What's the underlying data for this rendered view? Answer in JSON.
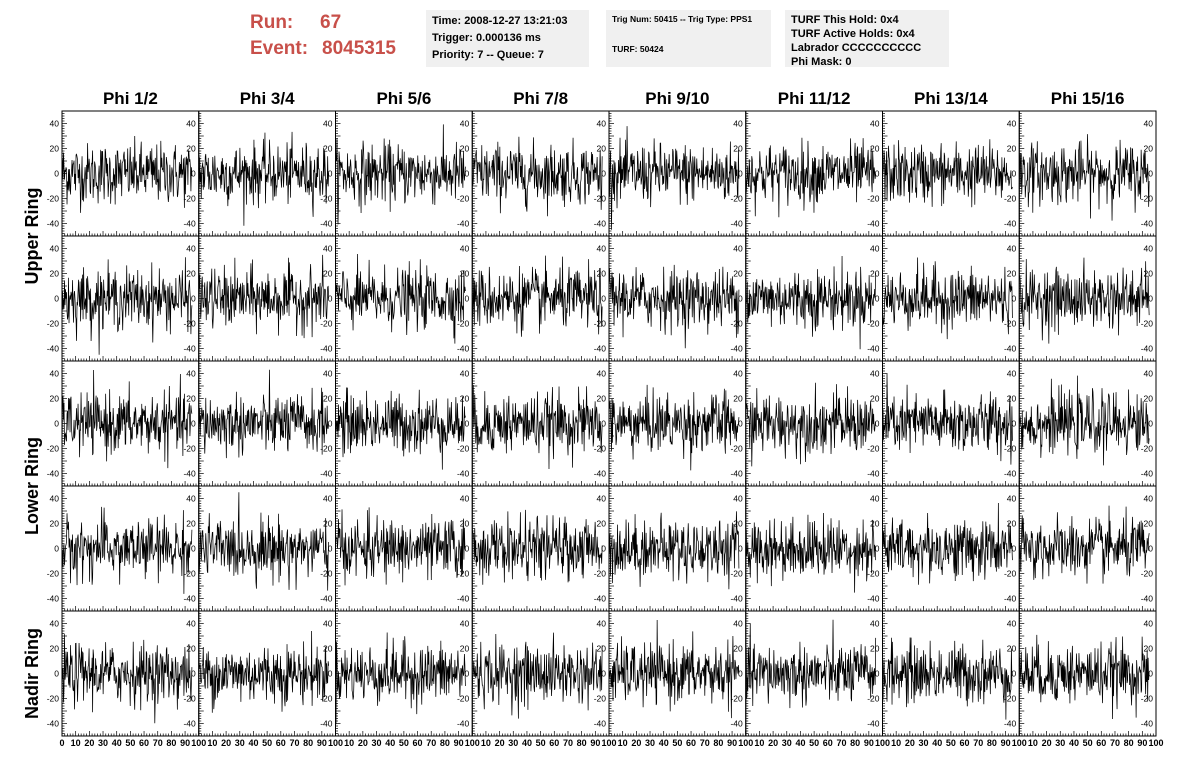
{
  "header": {
    "run_label": "Run:",
    "run_value": "67",
    "event_label": "Event:",
    "event_value": "8045315"
  },
  "info_box_1": {
    "time": "Time: 2008-12-27 13:21:03",
    "trigger": "Trigger: 0.000136 ms",
    "priority": "Priority: 7 -- Queue: 7"
  },
  "info_box_2": {
    "trig": "Trig Num: 50415 -- Trig Type: PPS1",
    "turf": "TURF: 50424"
  },
  "info_box_3": {
    "hold": "TURF This Hold: 0x4",
    "active": "TURF Active Holds: 0x4",
    "labrador": "Labrador CCCCCCCCCC",
    "mask": "Phi Mask: 0"
  },
  "chart_data": {
    "type": "line",
    "columns": [
      "Phi 1/2",
      "Phi 3/4",
      "Phi 5/6",
      "Phi 7/8",
      "Phi 9/10",
      "Phi 11/12",
      "Phi 13/14",
      "Phi 15/16"
    ],
    "rows": [
      "Upper Ring",
      "Upper Ring",
      "Lower Ring",
      "Lower Ring",
      "Nadir Ring"
    ],
    "row_labels": [
      "Upper Ring",
      "Lower Ring",
      "Nadir Ring"
    ],
    "xlim": [
      0,
      100
    ],
    "ylim": [
      -50,
      50
    ],
    "yticks": [
      -40,
      -20,
      0,
      20,
      40
    ],
    "xticks": [
      0,
      10,
      20,
      30,
      40,
      50,
      60,
      70,
      80,
      90,
      100
    ],
    "samples": 260,
    "x_end": 95,
    "noise_sigma": 12,
    "description": "5 x 8 grid of waveform panels, each a noise trace of ~260 samples spanning x 0-95 with amplitude mostly within +/-40",
    "colors": {
      "trace": "#000000",
      "frame": "#000000"
    }
  }
}
